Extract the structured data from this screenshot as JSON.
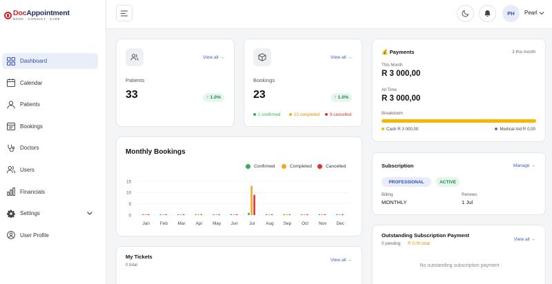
{
  "brand": {
    "name_part1": "Doc",
    "name_part2": "Appointment",
    "tagline": "BOOK · CONSULT · CARE"
  },
  "sidebar": {
    "items": [
      {
        "label": "Dashboard",
        "icon": "dashboard-icon",
        "active": true
      },
      {
        "label": "Calendar",
        "icon": "calendar-icon"
      },
      {
        "label": "Patients",
        "icon": "patients-icon"
      },
      {
        "label": "Bookings",
        "icon": "bookings-icon"
      },
      {
        "label": "Doctors",
        "icon": "stethoscope-icon"
      },
      {
        "label": "Users",
        "icon": "users-icon"
      },
      {
        "label": "Financials",
        "icon": "bar-chart-icon"
      },
      {
        "label": "Settings",
        "icon": "gear-icon",
        "expandable": true
      },
      {
        "label": "User Profile",
        "icon": "user-circle-icon"
      }
    ]
  },
  "header": {
    "avatar_initials": "PH",
    "user_name": "Pearl"
  },
  "patients": {
    "label": "Patients",
    "value": "33",
    "change": "↑ 1.0%",
    "view_all": "View all →"
  },
  "bookings": {
    "label": "Bookings",
    "value": "23",
    "change": "↑ 1.0%",
    "view_all": "View all →",
    "confirmed": "1 confirmed",
    "completed": "13 completed",
    "cancelled": "9 cancelled"
  },
  "payments": {
    "title": "Payments",
    "period": "3 this month",
    "this_month_label": "This Month",
    "this_month_value": "R 3 000,00",
    "all_time_label": "All Time",
    "all_time_value": "R 3 000,00",
    "breakdown_label": "Breakdown",
    "cash": "Cash R 3 000,00",
    "medical_aid": "Medical Aid R 0,00",
    "cash_share": 1.0
  },
  "subscription": {
    "title": "Subscription",
    "manage": "Manage →",
    "plan": "PROFESSIONAL",
    "status": "ACTIVE",
    "billing_label": "Billing",
    "billing_value": "MONTHLY",
    "renews_label": "Renews",
    "renews_value": "1 Jul"
  },
  "outstanding": {
    "title": "Outstanding Subscription Payment",
    "pending": "0 pending",
    "total": "R 0,00 total",
    "view_all": "View all →",
    "empty": "No outstanding subscription payment"
  },
  "tickets": {
    "title": "My Tickets",
    "count": "0 total",
    "view_all": "View all →"
  },
  "colors": {
    "confirmed": "#2fb157",
    "completed": "#f5a81d",
    "cancelled": "#e03131",
    "accent": "#3a5bc7"
  },
  "chart_data": {
    "type": "bar",
    "title": "Monthly Bookings",
    "categories": [
      "Jan",
      "Feb",
      "Mar",
      "Apr",
      "May",
      "Jun",
      "Jul",
      "Aug",
      "Sep",
      "Oct",
      "Nov",
      "Dec"
    ],
    "series": [
      {
        "name": "Confirmed",
        "values": [
          0,
          0,
          0,
          0,
          0,
          0,
          1,
          0,
          0,
          0,
          0,
          0
        ]
      },
      {
        "name": "Completed",
        "values": [
          0,
          0,
          0,
          0,
          0,
          0,
          13,
          0,
          0,
          0,
          0,
          0
        ]
      },
      {
        "name": "Cancelled",
        "values": [
          0,
          0,
          0,
          0,
          0,
          0,
          9,
          0,
          0,
          0,
          0,
          0
        ]
      }
    ],
    "yticks": [
      0,
      5,
      10,
      15
    ],
    "ylim": [
      0,
      15
    ],
    "legend": "top-right",
    "grid": true
  }
}
